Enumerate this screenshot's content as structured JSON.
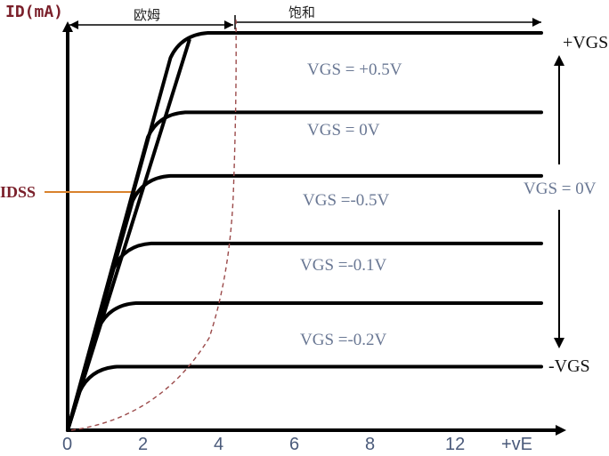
{
  "chart_data": {
    "type": "line",
    "title": "",
    "ylabel": "ID(mA)",
    "xlabel": "+vE",
    "x_ticks": [
      "0",
      "2",
      "4",
      "6",
      "8",
      "12"
    ],
    "idss_label": "IDSS",
    "regions": {
      "ohmic": "欧姆",
      "saturation": "饱和"
    },
    "side_labels": {
      "top": "+VGS",
      "middle": "VGS = 0V",
      "bottom": "-VGS"
    },
    "curve_labels": [
      "VGS = +0.5V",
      "VGS = 0V",
      "VGS =-0.5V",
      "VGS =-0.1V",
      "VGS =-0.2V"
    ],
    "series": [
      {
        "plateau": 100,
        "knee_x": 3.0
      },
      {
        "plateau": 80,
        "knee_x": 2.4
      },
      {
        "plateau": 64,
        "knee_x": 2.0
      },
      {
        "plateau": 47,
        "knee_x": 1.5
      },
      {
        "plateau": 32,
        "knee_x": 1.1
      },
      {
        "plateau": 16,
        "knee_x": 0.6
      }
    ],
    "idss_value": 55,
    "colors": {
      "curve": "#000000",
      "idss_line": "#d9822b",
      "boundary": "#9b4a4a",
      "axis_title": "#7a1f2a"
    }
  }
}
